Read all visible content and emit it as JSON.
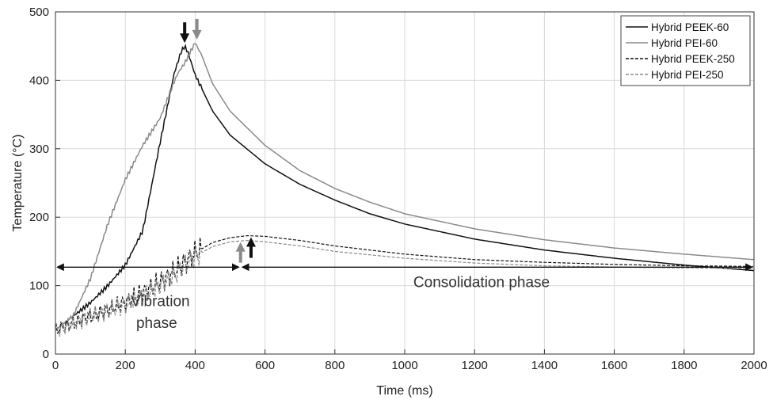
{
  "chart_data": {
    "type": "line",
    "title": "",
    "xlabel": "Time (ms)",
    "ylabel": "Temperature (°C)",
    "xlim": [
      0,
      2000
    ],
    "ylim": [
      0,
      500
    ],
    "xticks": [
      0,
      200,
      400,
      600,
      800,
      1000,
      1200,
      1400,
      1600,
      1800,
      2000
    ],
    "yticks": [
      0,
      100,
      200,
      300,
      400,
      500
    ],
    "grid": true,
    "legend_position": "top-right",
    "series": [
      {
        "name": "Hybrid PEEK-60",
        "color": "#111111",
        "dash": "solid",
        "x": [
          0,
          50,
          100,
          150,
          200,
          250,
          300,
          320,
          340,
          360,
          370,
          380,
          400,
          450,
          500,
          600,
          700,
          800,
          900,
          1000,
          1200,
          1400,
          1600,
          1800,
          2000
        ],
        "y": [
          35,
          55,
          75,
          100,
          130,
          180,
          310,
          360,
          410,
          442,
          450,
          440,
          408,
          355,
          320,
          278,
          248,
          225,
          205,
          190,
          168,
          152,
          140,
          130,
          122
        ]
      },
      {
        "name": "Hybrid PEI-60",
        "color": "#8a8a8a",
        "dash": "solid",
        "x": [
          0,
          50,
          100,
          150,
          200,
          250,
          300,
          330,
          350,
          370,
          385,
          400,
          420,
          450,
          500,
          600,
          700,
          800,
          900,
          1000,
          1200,
          1400,
          1600,
          1800,
          2000
        ],
        "y": [
          35,
          55,
          110,
          190,
          255,
          305,
          345,
          385,
          410,
          425,
          440,
          455,
          435,
          395,
          355,
          305,
          268,
          242,
          222,
          205,
          183,
          167,
          155,
          146,
          138
        ]
      },
      {
        "name": "Hybrid PEEK-250",
        "color": "#111111",
        "dash": "dashed",
        "x": [
          0,
          50,
          100,
          150,
          200,
          250,
          300,
          350,
          400,
          450,
          500,
          550,
          600,
          700,
          800,
          1000,
          1200,
          1400,
          1600,
          1800,
          2000
        ],
        "y": [
          35,
          45,
          55,
          65,
          75,
          90,
          105,
          125,
          148,
          163,
          170,
          173,
          172,
          166,
          158,
          146,
          138,
          134,
          131,
          129,
          128
        ]
      },
      {
        "name": "Hybrid PEI-250",
        "color": "#8a8a8a",
        "dash": "dashed",
        "x": [
          0,
          50,
          100,
          150,
          200,
          250,
          300,
          350,
          400,
          450,
          500,
          550,
          600,
          700,
          800,
          1000,
          1200,
          1400,
          1600,
          1800,
          2000
        ],
        "y": [
          35,
          45,
          55,
          63,
          72,
          86,
          100,
          120,
          143,
          157,
          164,
          166,
          164,
          158,
          150,
          140,
          133,
          129,
          127,
          126,
          125
        ]
      }
    ],
    "annotations": [
      {
        "text": "Vibration",
        "x": 300,
        "y": 70
      },
      {
        "text": "phase",
        "x": 290,
        "y": 38
      },
      {
        "text": "Consolidation phase",
        "x": 1220,
        "y": 98
      }
    ],
    "phase_arrows": [
      {
        "name": "vibration-phase-arrow",
        "x1": 0,
        "x2": 530,
        "y": 127
      },
      {
        "name": "consolidation-phase-arrow",
        "x1": 530,
        "x2": 2000,
        "y": 127
      }
    ],
    "peak_arrows": [
      {
        "name": "peak-arrow-peek-60",
        "x": 370,
        "y": 450,
        "color": "#111111",
        "direction": "down"
      },
      {
        "name": "peak-arrow-pei-60",
        "x": 405,
        "y": 455,
        "color": "#8a8a8a",
        "direction": "down"
      },
      {
        "name": "peak-arrow-pei-250",
        "x": 530,
        "y": 166,
        "color": "#8a8a8a",
        "direction": "up"
      },
      {
        "name": "peak-arrow-peek-250",
        "x": 560,
        "y": 173,
        "color": "#111111",
        "direction": "up"
      }
    ]
  }
}
